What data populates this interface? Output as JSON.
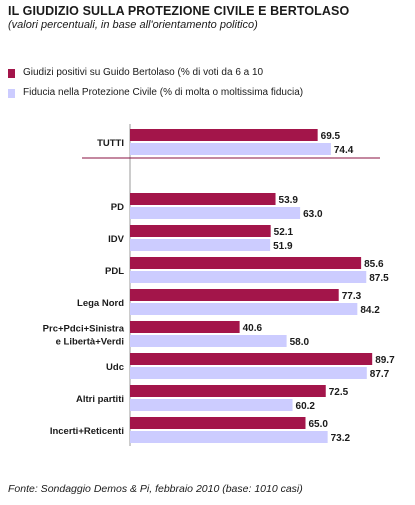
{
  "title": "IL GIUDIZIO SULLA PROTEZIONE CIVILE E BERTOLASO",
  "subtitle": "(valori percentuali, in base all'orientamento politico)",
  "source": "Fonte: Sondaggio Demos & Pi, febbraio 2010 (base: 1010 casi)",
  "colors": {
    "series1": "#a3154a",
    "series2": "#ccccff",
    "divider": "#8a1040"
  },
  "chart_data": {
    "type": "bar",
    "orientation": "horizontal",
    "categories": [
      "TUTTI",
      "PD",
      "IDV",
      "PDL",
      "Lega Nord",
      "Prc+Pdci+Sinistra e Libertà+Verdi",
      "Udc",
      "Altri partiti",
      "Incerti+Reticenti"
    ],
    "category_lines": [
      [
        "TUTTI"
      ],
      [
        "PD"
      ],
      [
        "IDV"
      ],
      [
        "PDL"
      ],
      [
        "Lega Nord"
      ],
      [
        "Prc+Pdci+Sinistra",
        "e Libertà+Verdi"
      ],
      [
        "Udc"
      ],
      [
        "Altri partiti"
      ],
      [
        "Incerti+Reticenti"
      ]
    ],
    "series": [
      {
        "name": "Giudizi positivi su Guido Bertolaso (% di voti da 6 a 10",
        "values": [
          69.5,
          53.9,
          52.1,
          85.6,
          77.3,
          40.6,
          89.7,
          72.5,
          65.0
        ]
      },
      {
        "name": "Fiducia nella Protezione Civile (% di molta o moltissima fiducia)",
        "values": [
          74.4,
          63.0,
          51.9,
          87.5,
          84.2,
          58.0,
          87.7,
          60.2,
          73.2
        ]
      }
    ],
    "value_labels": [
      [
        "69.5",
        "53.9",
        "52.1",
        "85.6",
        "77.3",
        "40.6",
        "89.7",
        "72.5",
        "65.0"
      ],
      [
        "74.4",
        "63.0",
        "51.9",
        "87.5",
        "84.2",
        "58.0",
        "87.7",
        "60.2",
        "73.2"
      ]
    ],
    "xlim": [
      0,
      100
    ],
    "legend_position": "top-left"
  }
}
